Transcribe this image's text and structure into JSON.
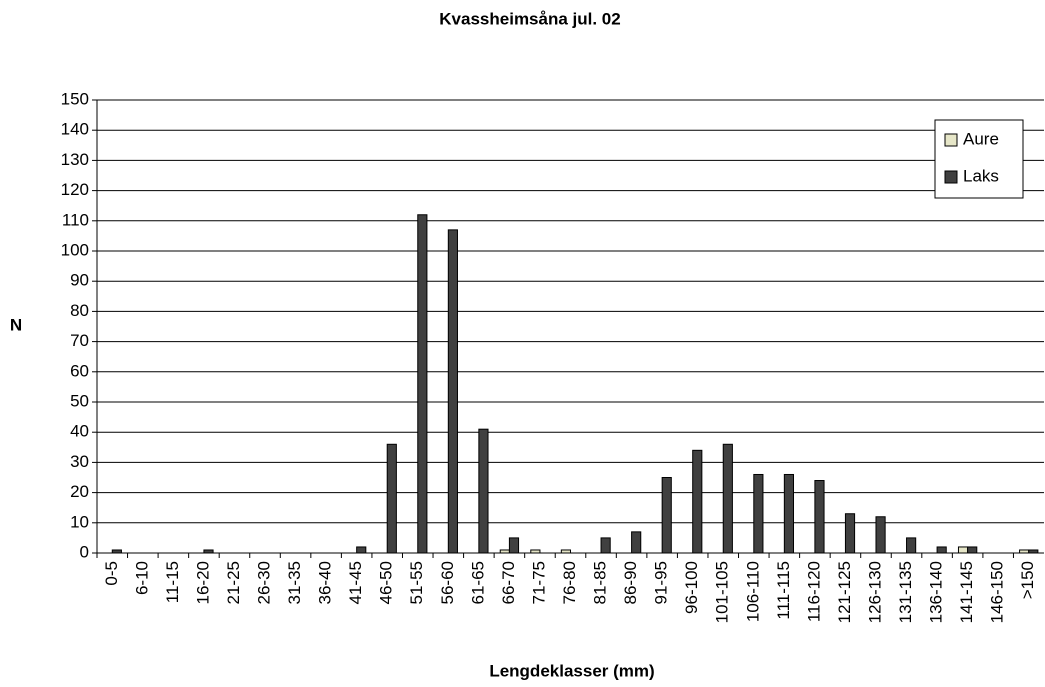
{
  "chart_data": {
    "type": "bar",
    "title": "Kvassheimsåna jul. 02",
    "x_label": "Lengdeklasser (mm)",
    "y_label": "N",
    "categories": [
      "0-5",
      "6-10",
      "11-15",
      "16-20",
      "21-25",
      "26-30",
      "31-35",
      "36-40",
      "41-45",
      "46-50",
      "51-55",
      "56-60",
      "61-65",
      "66-70",
      "71-75",
      "76-80",
      "81-85",
      "86-90",
      "91-95",
      "96-100",
      "101-105",
      "106-110",
      "111-115",
      "116-120",
      "121-125",
      "126-130",
      "131-135",
      "136-140",
      "141-145",
      "146-150",
      ">150"
    ],
    "series": [
      {
        "name": "Aure",
        "color": "#e6e6c8",
        "values": [
          0,
          0,
          0,
          0,
          0,
          0,
          0,
          0,
          0,
          0,
          0,
          0,
          0,
          1,
          1,
          1,
          0,
          0,
          0,
          0,
          0,
          0,
          0,
          0,
          0,
          0,
          0,
          0,
          2,
          0,
          1
        ]
      },
      {
        "name": "Laks",
        "color": "#404040",
        "values": [
          1,
          0,
          0,
          1,
          0,
          0,
          0,
          0,
          2,
          36,
          112,
          107,
          41,
          5,
          0,
          0,
          5,
          7,
          25,
          34,
          36,
          26,
          26,
          24,
          13,
          12,
          5,
          2,
          2,
          0,
          1
        ]
      }
    ],
    "ylim": [
      0,
      150
    ],
    "yticks": [
      0,
      10,
      20,
      30,
      40,
      50,
      60,
      70,
      80,
      90,
      100,
      110,
      120,
      130,
      140,
      150
    ],
    "grid": true,
    "legend": "upper right"
  }
}
